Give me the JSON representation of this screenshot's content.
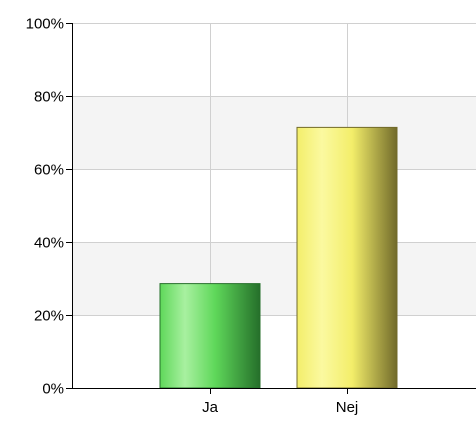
{
  "chart_data": {
    "type": "bar",
    "categories": [
      "Ja",
      "Nej"
    ],
    "values": [
      28.6,
      71.4
    ],
    "ylim": [
      0,
      100
    ],
    "yticks": [
      0,
      20,
      40,
      60,
      80,
      100
    ],
    "ytick_labels": [
      "0%",
      "20%",
      "40%",
      "60%",
      "80%",
      "100%"
    ],
    "grid": true,
    "bar_colors": [
      {
        "light": "#a8f0a0",
        "mid": "#5fd85a",
        "dark": "#256f2a"
      },
      {
        "light": "#fbf9a0",
        "mid": "#f3ee6a",
        "dark": "#716a2a"
      }
    ],
    "band_color": "#f4f4f4",
    "grid_color": "#d0d0d0",
    "axis_color": "#000000"
  }
}
